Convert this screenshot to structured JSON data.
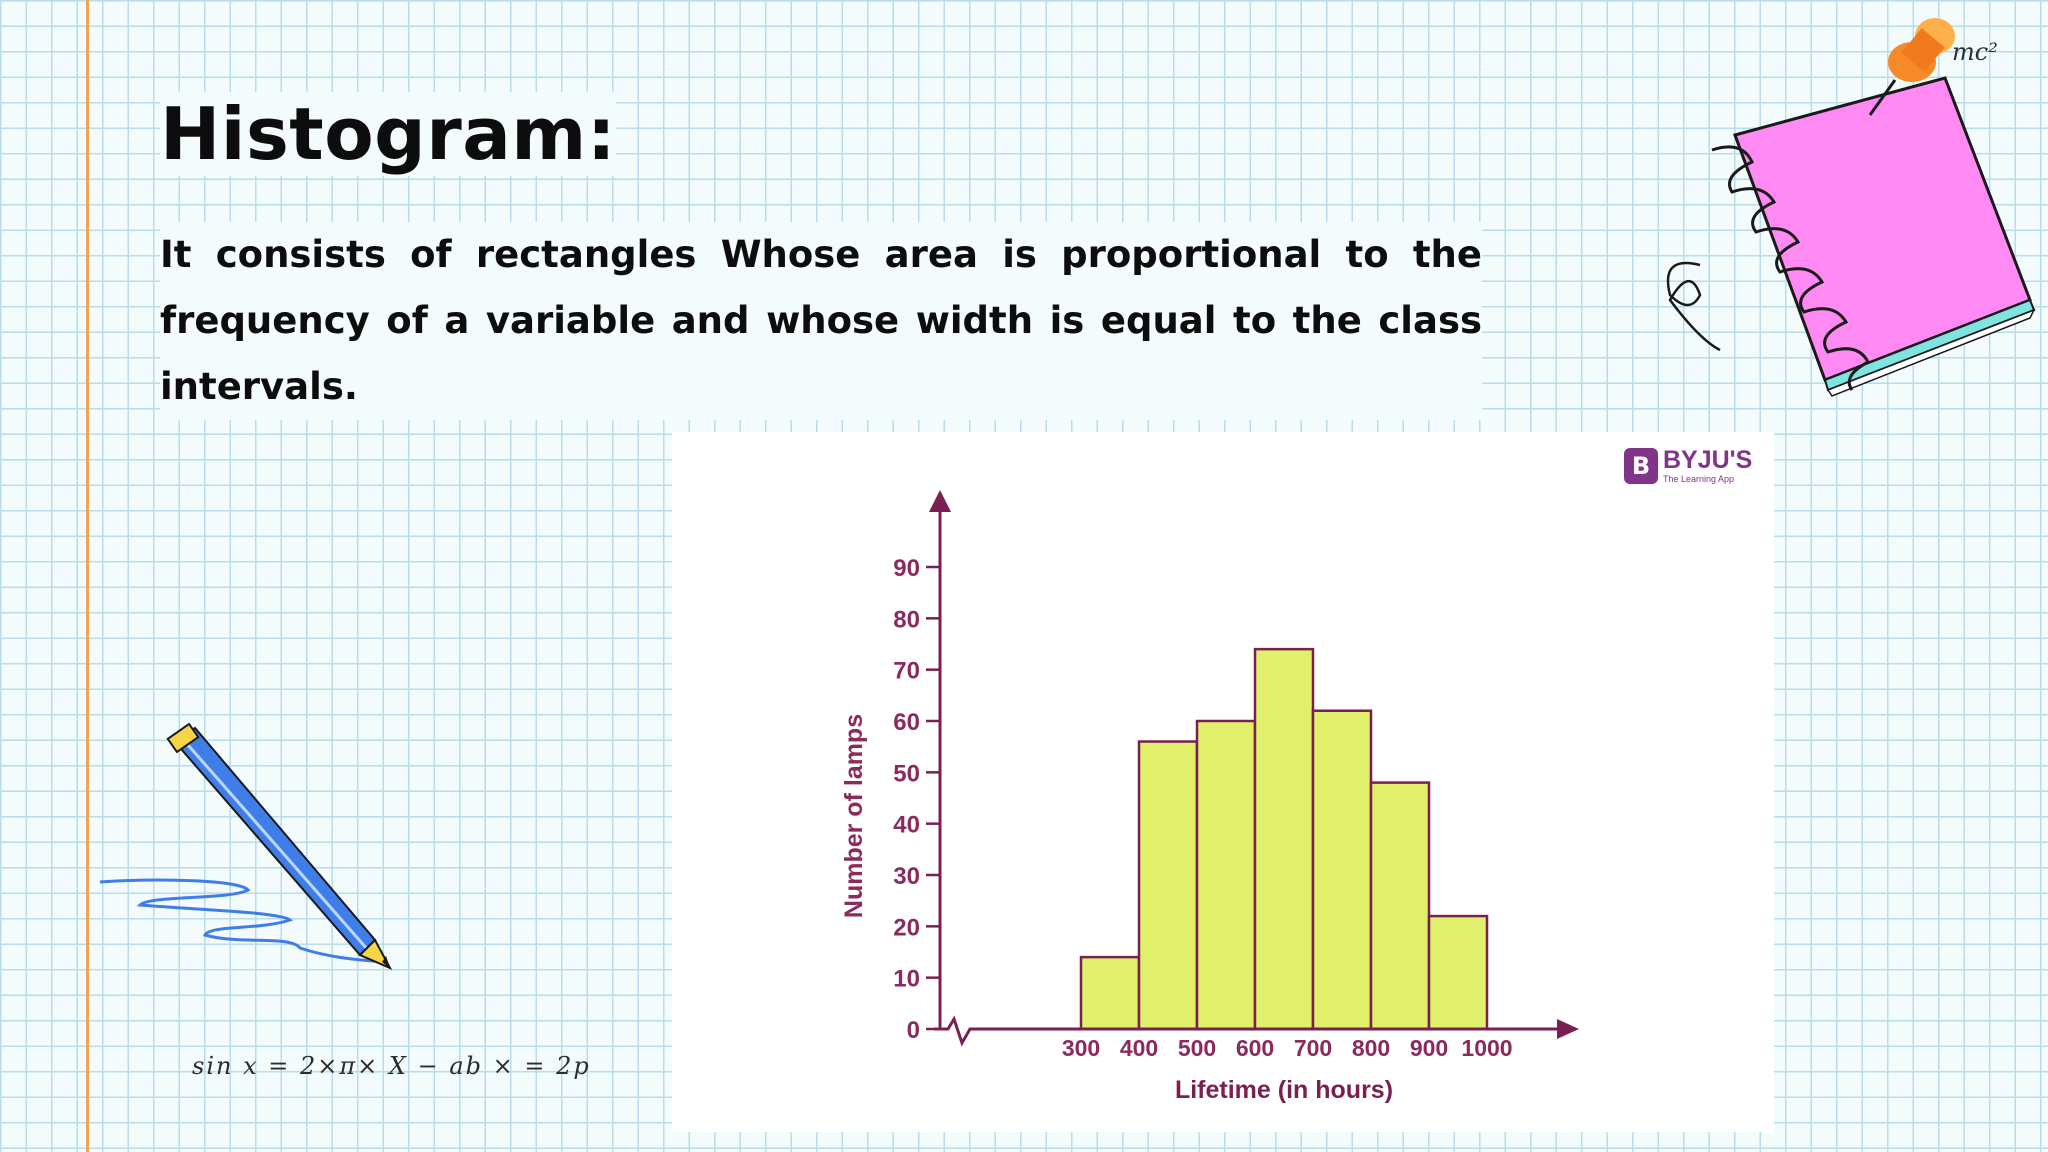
{
  "slide": {
    "title": "Histogram:",
    "description": "It consists of rectangles Whose area is proportional to the frequency of a variable and whose width is equal to the class intervals.",
    "formula": "sin x = 2×π×  X  − ab × = 2p",
    "corner_note": "mc²"
  },
  "logo": {
    "badge": "B",
    "name": "BYJU'S",
    "tagline": "The Learning App"
  },
  "colors": {
    "bar_fill": "#e0f06a",
    "bar_stroke": "#7a1f52",
    "axis": "#7a1f52",
    "tick_label": "#8b2a5e",
    "axis_label_x": "#7a1f52",
    "axis_label_y": "#8b2a5e",
    "brand": "#813588",
    "margin_line": "#f2a254",
    "pencil": "#3f7ee8",
    "notebook": "#ff8af3"
  },
  "chart_data": {
    "type": "histogram",
    "title": "",
    "xlabel": "Lifetime (in hours)",
    "ylabel": "Number of lamps",
    "ylim": [
      0,
      90
    ],
    "yticks": [
      0,
      10,
      20,
      30,
      40,
      50,
      60,
      70,
      80,
      90
    ],
    "xticks": [
      300,
      400,
      500,
      600,
      700,
      800,
      900,
      1000
    ],
    "x_axis_break": true,
    "grid": false,
    "bins": [
      {
        "from": 300,
        "to": 400,
        "value": 14
      },
      {
        "from": 400,
        "to": 500,
        "value": 56
      },
      {
        "from": 500,
        "to": 600,
        "value": 60
      },
      {
        "from": 600,
        "to": 700,
        "value": 74
      },
      {
        "from": 700,
        "to": 800,
        "value": 62
      },
      {
        "from": 800,
        "to": 900,
        "value": 48
      },
      {
        "from": 900,
        "to": 1000,
        "value": 22
      }
    ]
  }
}
